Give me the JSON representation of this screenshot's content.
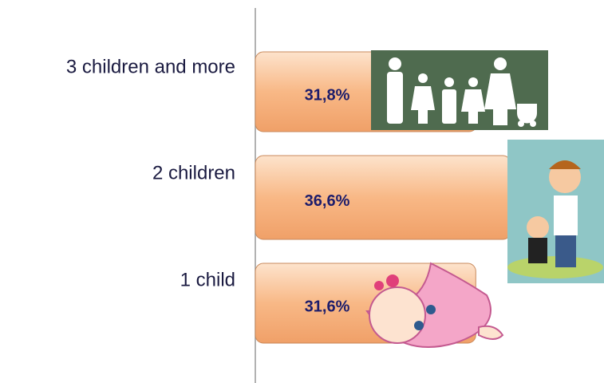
{
  "chart_data": {
    "type": "bar",
    "orientation": "horizontal",
    "categories": [
      "3 children and more",
      "2 children",
      "1 child"
    ],
    "values": [
      31.8,
      36.6,
      31.6
    ],
    "value_labels": [
      "31,8%",
      "36,6%",
      "31,6%"
    ],
    "color": "#f8b886"
  }
}
